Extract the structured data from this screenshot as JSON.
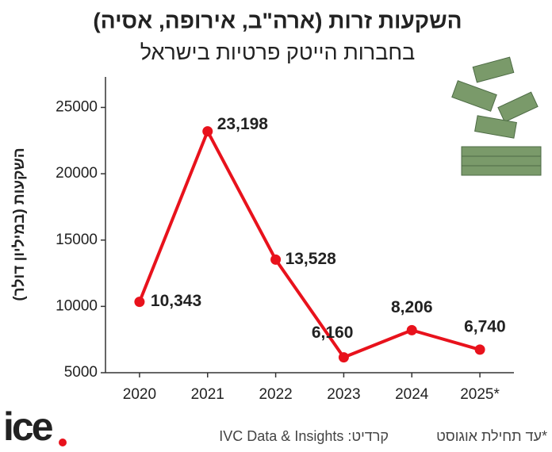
{
  "chart_data": {
    "type": "line",
    "title": "השקעות זרות (ארה\"ב, אירופה, אסיה)",
    "subtitle": "בחברות הייטק פרטיות בישראל",
    "y_label": "השקעות (במיליון דולר)",
    "categories": [
      "2020",
      "2021",
      "2022",
      "2023",
      "2024",
      "2025*"
    ],
    "series": [
      {
        "color": "#e8121c",
        "values": [
          10343,
          23198,
          13528,
          6160,
          8206,
          6740
        ],
        "value_labels": [
          "10,343",
          "23,198",
          "13,528",
          "6,160",
          "8,206",
          "6,740"
        ]
      }
    ],
    "ylim": [
      5000,
      27300
    ],
    "yticks": [
      5000,
      10000,
      15000,
      20000,
      25000
    ],
    "logo": "ice",
    "credit": "קרדיט: IVC Data & Insights",
    "footnote": "*עד תחילת אוגוסט"
  }
}
